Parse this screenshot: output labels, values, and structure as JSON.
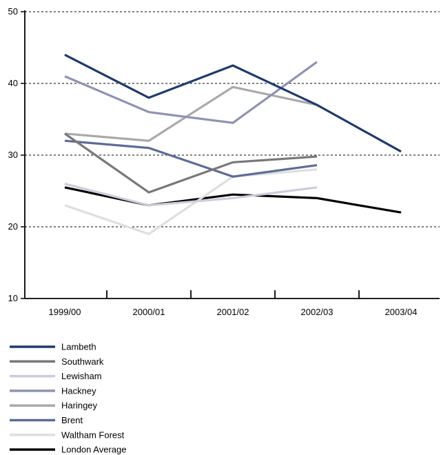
{
  "chart_data": {
    "type": "line",
    "title": "",
    "xlabel": "",
    "ylabel": "",
    "categories": [
      "1999/00",
      "2000/01",
      "2001/02",
      "2002/03",
      "2003/04"
    ],
    "ylim": [
      10,
      50
    ],
    "yticks": [
      10,
      20,
      30,
      40,
      50
    ],
    "grid": "horizontal-dashed",
    "legend_position": "bottom-left",
    "series": [
      {
        "name": "Lambeth",
        "color": "#1f3a6e",
        "values": [
          44,
          38,
          42.5,
          37,
          30.5
        ]
      },
      {
        "name": "Southwark",
        "color": "#787878",
        "values": [
          33,
          24.8,
          29,
          29.8,
          null
        ]
      },
      {
        "name": "Lewisham",
        "color": "#ccccdd",
        "values": [
          26,
          23,
          24,
          25.5,
          null
        ]
      },
      {
        "name": "Hackney",
        "color": "#8e92b4",
        "values": [
          41,
          36,
          34.5,
          43,
          null
        ]
      },
      {
        "name": "Haringey",
        "color": "#a9a9a9",
        "values": [
          33,
          32,
          39.5,
          37,
          null
        ]
      },
      {
        "name": "Brent",
        "color": "#5e6b98",
        "values": [
          32,
          31,
          27,
          28.6,
          null
        ]
      },
      {
        "name": "Waltham Forest",
        "color": "#dedede",
        "values": [
          23,
          19,
          27,
          28,
          null
        ]
      },
      {
        "name": "London Average",
        "color": "#000000",
        "values": [
          25.5,
          23,
          24.5,
          24,
          22
        ]
      }
    ]
  }
}
